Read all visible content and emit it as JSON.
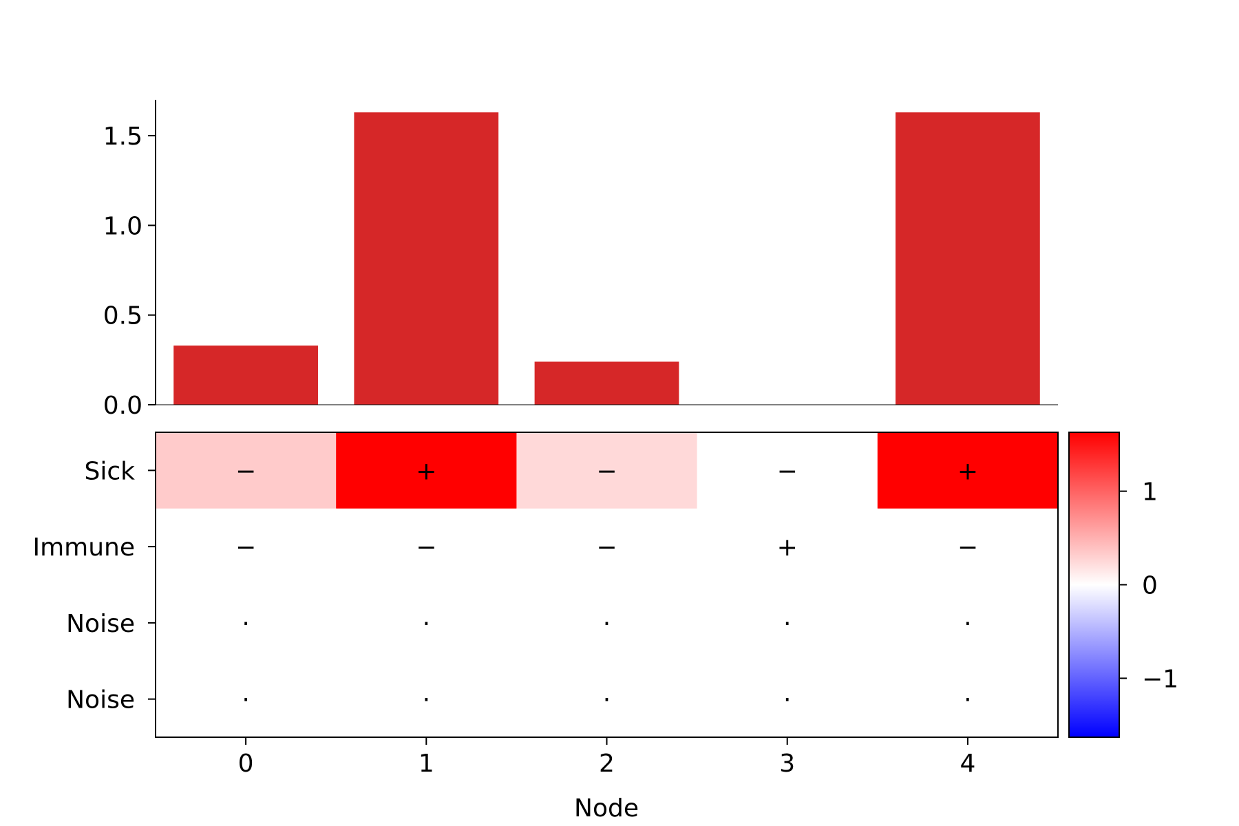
{
  "chart_data": [
    {
      "type": "bar",
      "categories": [
        "0",
        "1",
        "2",
        "3",
        "4"
      ],
      "values": [
        0.33,
        1.63,
        0.24,
        0.0,
        1.63
      ],
      "ylim": [
        0,
        1.7
      ],
      "yticks": [
        "0.0",
        "0.5",
        "1.0",
        "1.5"
      ],
      "bar_color": "#d62728"
    },
    {
      "type": "heatmap",
      "xlabel": "Node",
      "x_ticks": [
        "0",
        "1",
        "2",
        "3",
        "4"
      ],
      "y_ticks": [
        "Sick",
        "Immune",
        "Noise",
        "Noise"
      ],
      "values": [
        [
          0.33,
          1.63,
          0.24,
          0.0,
          1.63
        ],
        [
          0.0,
          0.0,
          0.0,
          0.0,
          0.0
        ],
        [
          0.0,
          0.0,
          0.0,
          0.0,
          0.0
        ],
        [
          0.0,
          0.0,
          0.0,
          0.0,
          0.0
        ]
      ],
      "cell_labels": [
        [
          "−",
          "+",
          "−",
          "−",
          "+"
        ],
        [
          "−",
          "−",
          "−",
          "+",
          "−"
        ],
        [
          "·",
          "·",
          "·",
          "·",
          "·"
        ],
        [
          "·",
          "·",
          "·",
          "·",
          "·"
        ]
      ],
      "colormap": "bwr",
      "vmin": -1.63,
      "vmax": 1.63,
      "colorbar_ticks": [
        "−1",
        "0",
        "1"
      ],
      "colorbar_tick_values": [
        -1,
        0,
        1
      ],
      "colormap_stops": [
        "#0000ff",
        "#ffffff",
        "#ff0000"
      ]
    }
  ]
}
